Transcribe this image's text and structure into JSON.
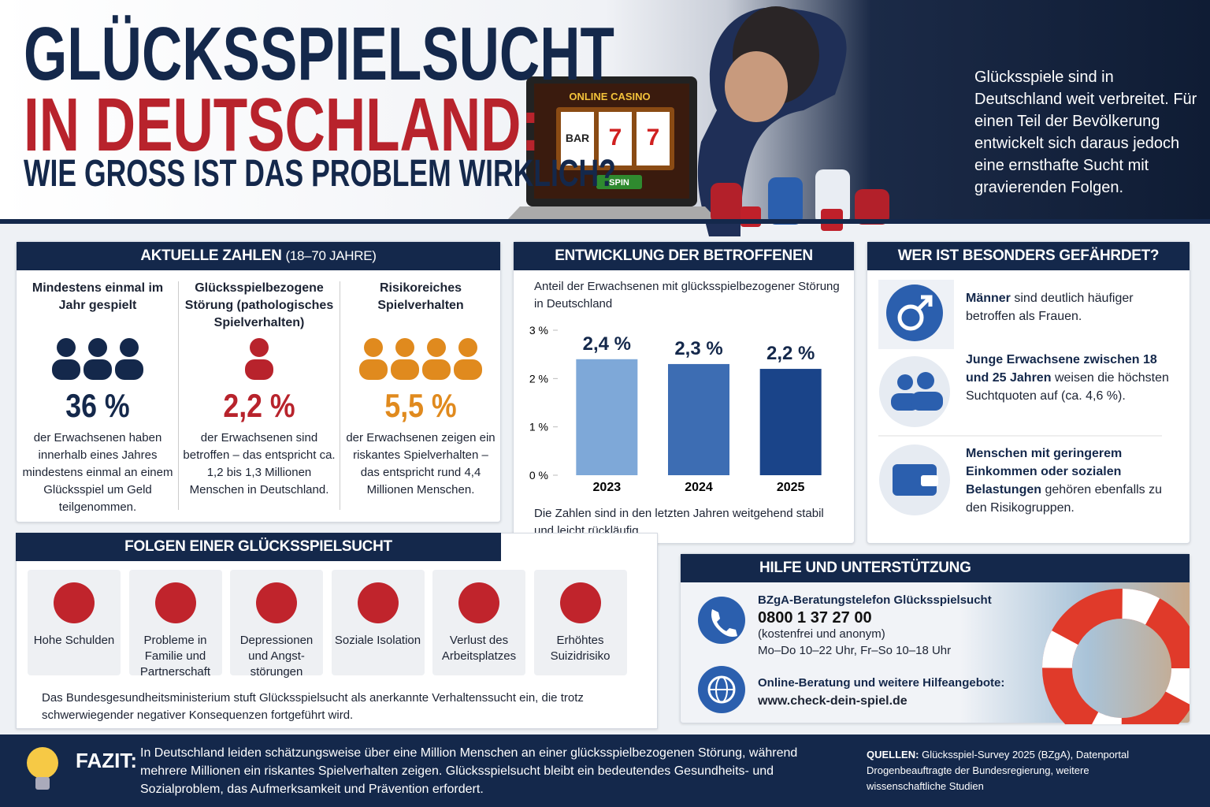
{
  "header": {
    "title_line1": "GLÜCKSSPIELSUCHT",
    "title_line2": "IN DEUTSCHLAND:",
    "subtitle": "WIE GROSS IST DAS PROBLEM WIRKLICH?",
    "intro": "Glücksspiele sind in Deutschland weit verbreitet. Für einen Teil der Bevölkerung entwickelt sich daraus jedoch eine ernsthafte Sucht mit gravierenden Folgen.",
    "casino_sign": "ONLINE CASINO",
    "slot_symbols": [
      "BAR",
      "7",
      "7"
    ],
    "spin": "SPIN"
  },
  "numbers": {
    "title": "AKTUELLE ZAHLEN",
    "title_note": "(18–70 JAHRE)",
    "items": [
      {
        "heading": "Mindestens einmal im Jahr gespielt",
        "value": "36 %",
        "text": "der Erwachsenen haben innerhalb eines Jahres mindestens einmal an einem Glücksspiel um Geld teilgenommen."
      },
      {
        "heading": "Glücksspielbezogene Störung (pathologisches Spielverhalten)",
        "value": "2,2 %",
        "text": "der Erwachsenen sind betroffen – das entspricht ca. 1,2 bis 1,3 Millionen Menschen in Deutschland."
      },
      {
        "heading": "Risikoreiches Spielverhalten",
        "value": "5,5 %",
        "text": "der Erwachsenen zeigen ein riskantes Spielverhalten – das entspricht rund 4,4 Millionen Menschen."
      }
    ]
  },
  "chart_data": {
    "type": "bar",
    "title": "ENTWICKLUNG DER BETROFFENEN",
    "subtitle": "Anteil der Erwachsenen mit glücksspielbezogener Störung in Deutschland",
    "categories": [
      "2023",
      "2024",
      "2025"
    ],
    "values": [
      2.4,
      2.3,
      2.2
    ],
    "value_labels": [
      "2,4 %",
      "2,3 %",
      "2,2 %"
    ],
    "colors": [
      "#7ea8d8",
      "#3d6db3",
      "#1a4489"
    ],
    "ylim": [
      0,
      3
    ],
    "yticks": [
      {
        "value": 0,
        "label": "0 %"
      },
      {
        "value": 1,
        "label": "1 %"
      },
      {
        "value": 2,
        "label": "2 %"
      },
      {
        "value": 3,
        "label": "3 %"
      }
    ],
    "note": "Die Zahlen sind in den letzten Jahren weitgehend stabil und leicht rückläufig."
  },
  "risk": {
    "title": "WER IST BESONDERS GEFÄHRDET?",
    "items": [
      {
        "bold": "Männer",
        "text": "sind deutlich häufiger betroffen als Frauen."
      },
      {
        "bold": "Junge Erwachsene zwischen 18 und 25 Jahren",
        "text": "weisen die höchsten Suchtquoten auf (ca. 4,6 %)."
      },
      {
        "bold": "Menschen mit geringerem Einkommen oder sozialen Belastungen",
        "text": "gehören ebenfalls zu den Risikogruppen."
      }
    ]
  },
  "consequences": {
    "title": "FOLGEN EINER GLÜCKSSPIELSUCHT",
    "items": [
      "Hohe Schulden",
      "Probleme in Familie und Partnerschaft",
      "Depressionen und Angst-störungen",
      "Soziale Isolation",
      "Verlust des Arbeitsplatzes",
      "Erhöhtes Suizidrisiko"
    ],
    "note": "Das Bundesgesundheitsministerium stuft Glücksspielsucht als anerkannte Verhaltenssucht ein, die trotz schwerwiegender negativer Konsequenzen fortgeführt wird."
  },
  "help": {
    "title": "HILFE UND UNTERSTÜTZUNG",
    "phone_label": "BZgA-Beratungstelefon Glücksspielsucht",
    "phone": "0800 1 37 27 00",
    "phone_note": "(kostenfrei und anonym)",
    "hours": "Mo–Do 10–22 Uhr, Fr–So 10–18 Uhr",
    "online_label": "Online-Beratung und weitere Hilfeangebote:",
    "url": "www.check-dein-spiel.de"
  },
  "footer": {
    "fazit_label": "FAZIT:",
    "fazit": "In Deutschland leiden schätzungsweise über eine Million Menschen an einer glücksspielbezogenen Störung, während mehrere Millionen ein riskantes Spielverhalten zeigen. Glücksspielsucht bleibt ein bedeutendes Gesundheits- und Sozialproblem, das Aufmerksamkeit und Prävention erfordert.",
    "sources_label": "QUELLEN:",
    "sources": "Glücksspiel-Survey 2025 (BZgA), Datenportal Drogenbeauftragte der Bundesregierung, weitere wissenschaftliche Studien"
  }
}
